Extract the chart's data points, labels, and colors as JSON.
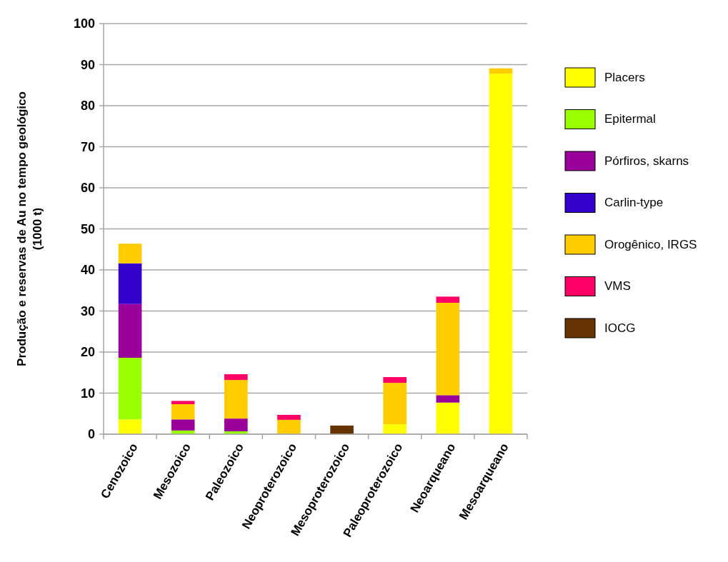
{
  "chart_data": {
    "type": "bar",
    "stacked": true,
    "ylabel": "Produção e reservas de Au no tempo geológico\n(1000 t)",
    "categories": [
      "Cenozoico",
      "Mesozoico",
      "Paleozoico",
      "Neoproterozoico",
      "Mesoproterozoico",
      "Paleoproterozoico",
      "Neoarqueano",
      "Mesoarqueano"
    ],
    "series": [
      {
        "name": "Placers",
        "color": "#ffff00",
        "values": [
          3.6,
          0,
          0,
          0,
          0,
          2.4,
          7.7,
          87.8
        ]
      },
      {
        "name": "Epitermal",
        "color": "#99ff00",
        "values": [
          15.0,
          0.9,
          0.7,
          0,
          0,
          0,
          0,
          0
        ]
      },
      {
        "name": "Pórfiros, skarns",
        "color": "#990099",
        "values": [
          13.1,
          2.7,
          3.1,
          0,
          0,
          0,
          1.8,
          0
        ]
      },
      {
        "name": "Carlin-type",
        "color": "#3300cc",
        "values": [
          9.9,
          0,
          0,
          0,
          0,
          0,
          0,
          0
        ]
      },
      {
        "name": "Orogênico, IRGS",
        "color": "#ffcc00",
        "values": [
          4.8,
          3.7,
          9.4,
          3.5,
          0,
          10.1,
          22.5,
          1.3
        ]
      },
      {
        "name": "VMS",
        "color": "#ff0066",
        "values": [
          0,
          0.8,
          1.4,
          1.2,
          0,
          1.4,
          1.5,
          0
        ]
      },
      {
        "name": "IOCG",
        "color": "#663300",
        "values": [
          0,
          0,
          0,
          0,
          2.1,
          0,
          0,
          0
        ]
      }
    ],
    "ylim": [
      0,
      100
    ],
    "yticks": [
      0,
      10,
      20,
      30,
      40,
      50,
      60,
      70,
      80,
      90,
      100
    ],
    "grid": "y",
    "legend": "right"
  }
}
